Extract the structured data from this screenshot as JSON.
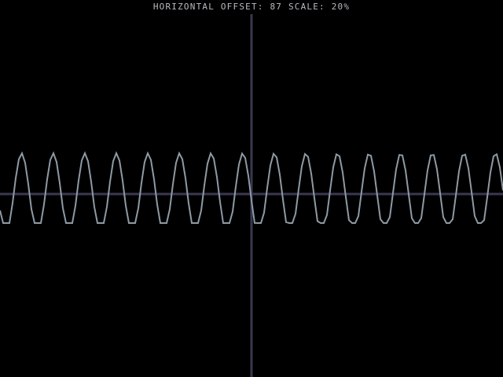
{
  "status": {
    "offset_label": "HORIZONTAL OFFSET:",
    "offset_value": "87",
    "scale_label": "SCALE:",
    "scale_value": "20%"
  },
  "colors": {
    "background": "#000000",
    "axis": "#3a3850",
    "waveform": "#8e9aa4",
    "text": "#b9b9c1"
  }
}
